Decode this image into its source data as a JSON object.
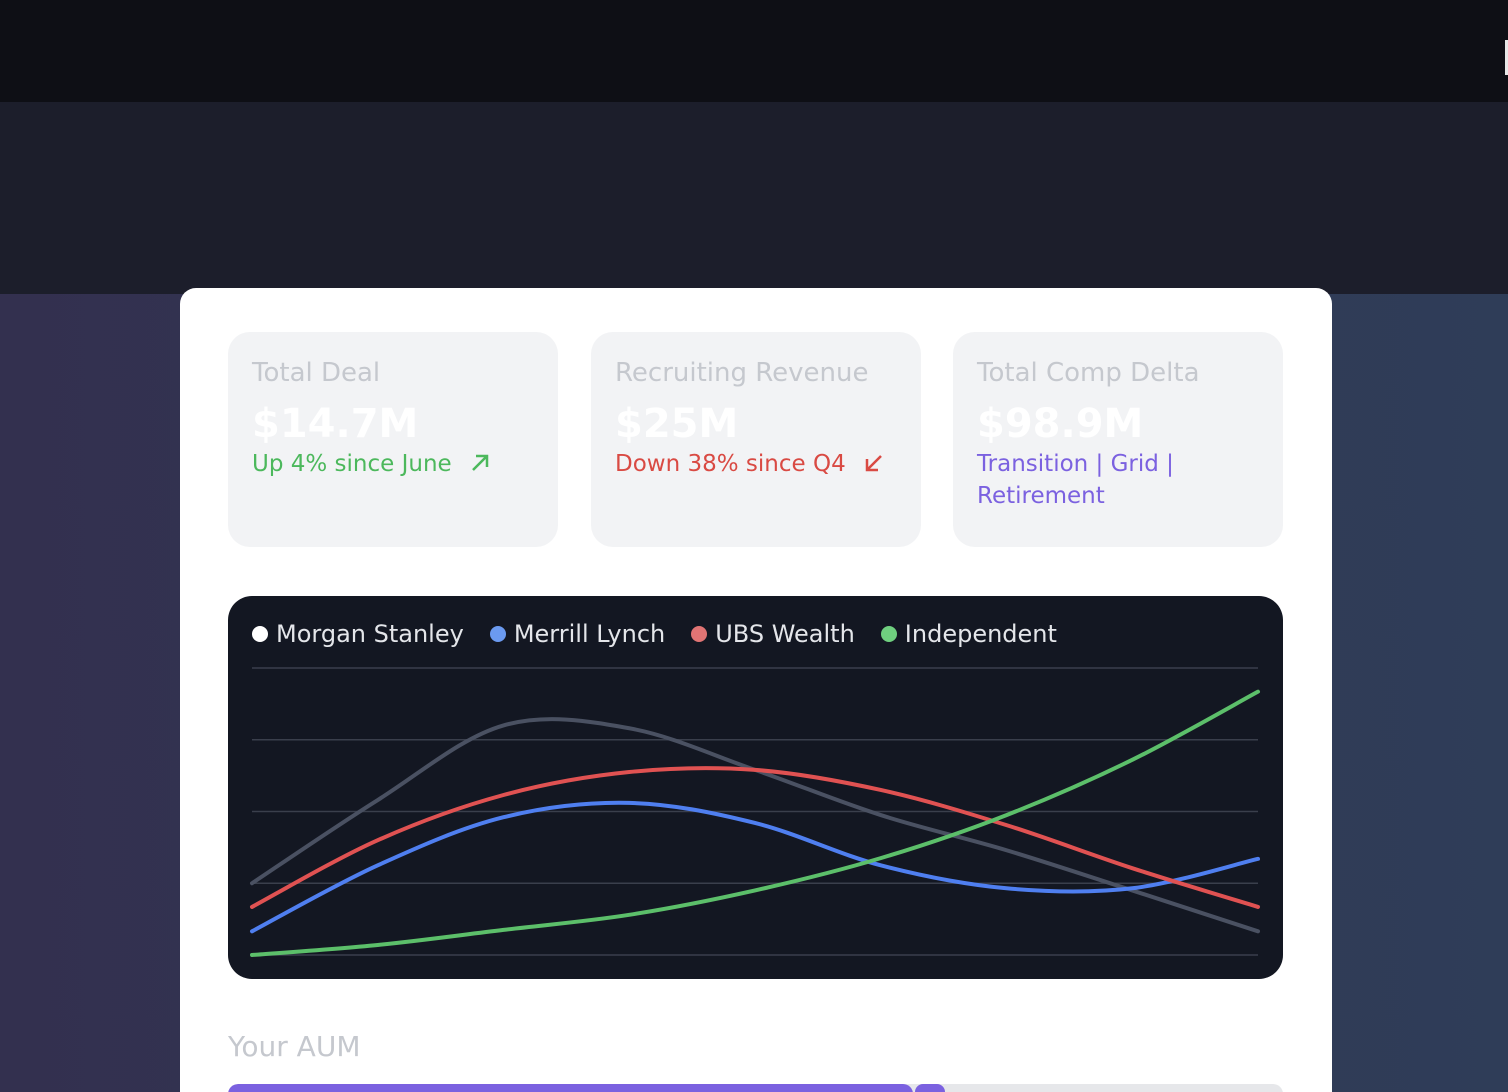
{
  "cards": [
    {
      "title": "Total Deal",
      "value": "$14.7M",
      "change": "Up 4% since June",
      "tone": "up"
    },
    {
      "title": "Recruiting Revenue",
      "value": "$25M",
      "change": "Down 38% since Q4",
      "tone": "down"
    },
    {
      "title": "Total Comp Delta",
      "value": "$98.9M",
      "change": "Transition | Grid | Retirement",
      "tone": "neutral"
    }
  ],
  "chart_data": {
    "type": "line",
    "categories": [
      null,
      null,
      null,
      null,
      null,
      null,
      null,
      null,
      null
    ],
    "ylim": [
      0,
      4
    ],
    "yticks": [
      0,
      1,
      2,
      3,
      4
    ],
    "grid": true,
    "legend": "top-left",
    "series": [
      {
        "name": "Morgan Stanley",
        "color": "#4a5162",
        "marker_color": "#ffffff",
        "values": [
          1.0,
          2.16,
          3.2,
          3.16,
          2.58,
          1.95,
          1.46,
          0.9,
          0.33
        ]
      },
      {
        "name": "Merrill Lynch",
        "color": "#4f7ff0",
        "marker_color": "#6b9af0",
        "values": [
          0.33,
          1.25,
          1.92,
          2.12,
          1.84,
          1.25,
          0.93,
          0.93,
          1.34
        ]
      },
      {
        "name": "UBS Wealth",
        "color": "#e05252",
        "marker_color": "#e07474",
        "values": [
          0.67,
          1.6,
          2.23,
          2.55,
          2.58,
          2.3,
          1.81,
          1.21,
          0.67
        ]
      },
      {
        "name": "Independent",
        "color": "#5cbf6a",
        "marker_color": "#6fcf7f",
        "values": [
          0,
          0.14,
          0.35,
          0.56,
          0.9,
          1.35,
          1.95,
          2.72,
          3.67
        ]
      }
    ]
  },
  "aum": {
    "label": "Your AUM"
  }
}
